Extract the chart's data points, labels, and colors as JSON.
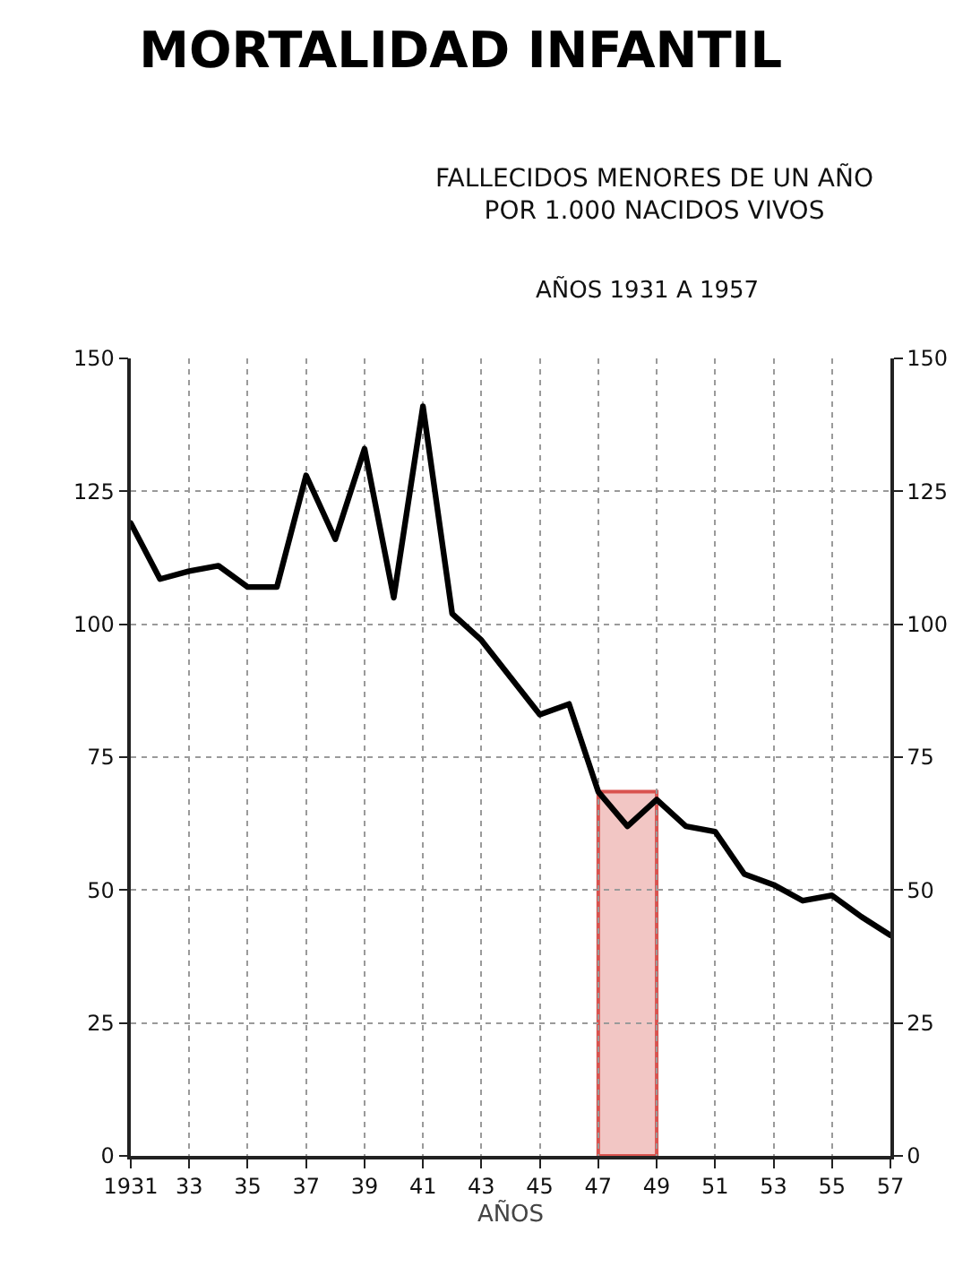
{
  "chart_data": {
    "type": "line",
    "title": "MORTALIDAD INFANTIL",
    "subtitle": "FALLECIDOS MENORES DE UN AÑO\nPOR 1.000 NACIDOS VIVOS",
    "annotations": [
      "AÑOS 1931 A 1957"
    ],
    "xlabel": "AÑOS",
    "x": [
      1931,
      1932,
      1933,
      1934,
      1935,
      1936,
      1937,
      1938,
      1939,
      1940,
      1941,
      1942,
      1943,
      1944,
      1945,
      1946,
      1947,
      1948,
      1949,
      1950,
      1951,
      1952,
      1953,
      1954,
      1955,
      1956,
      1957
    ],
    "series": [
      {
        "color": "#000000",
        "values": [
          119,
          108.5,
          110,
          111,
          107,
          107,
          128,
          116,
          133,
          105,
          141,
          102,
          97,
          90,
          83,
          85,
          68.5,
          62,
          67,
          62,
          61,
          53,
          51,
          48,
          49,
          45,
          41.5
        ]
      }
    ],
    "xlim": [
      1931,
      1957
    ],
    "xticks": [
      1931,
      {
        "value": 1933,
        "label": "33"
      },
      {
        "value": 1935,
        "label": "35"
      },
      {
        "value": 1937,
        "label": "37"
      },
      {
        "value": 1939,
        "label": "39"
      },
      {
        "value": 1941,
        "label": "41"
      },
      {
        "value": 1943,
        "label": "43"
      },
      {
        "value": 1945,
        "label": "45"
      },
      {
        "value": 1947,
        "label": "47"
      },
      {
        "value": 1949,
        "label": "49"
      },
      {
        "value": 1951,
        "label": "51"
      },
      {
        "value": 1953,
        "label": "53"
      },
      {
        "value": 1955,
        "label": "55"
      },
      {
        "value": 1957,
        "label": "57"
      }
    ],
    "ylim": [
      0,
      150
    ],
    "yticks": [
      0,
      25,
      50,
      75,
      100,
      125,
      150
    ],
    "y2lim": [
      0,
      150
    ],
    "y2ticks": [
      0,
      25,
      50,
      75,
      100,
      125,
      150
    ],
    "bands": [
      {
        "axis": "x",
        "from": 1947,
        "to": 1949,
        "color": "#d9534f"
      }
    ],
    "grid": true,
    "marker": "none",
    "line_style": "solid"
  }
}
